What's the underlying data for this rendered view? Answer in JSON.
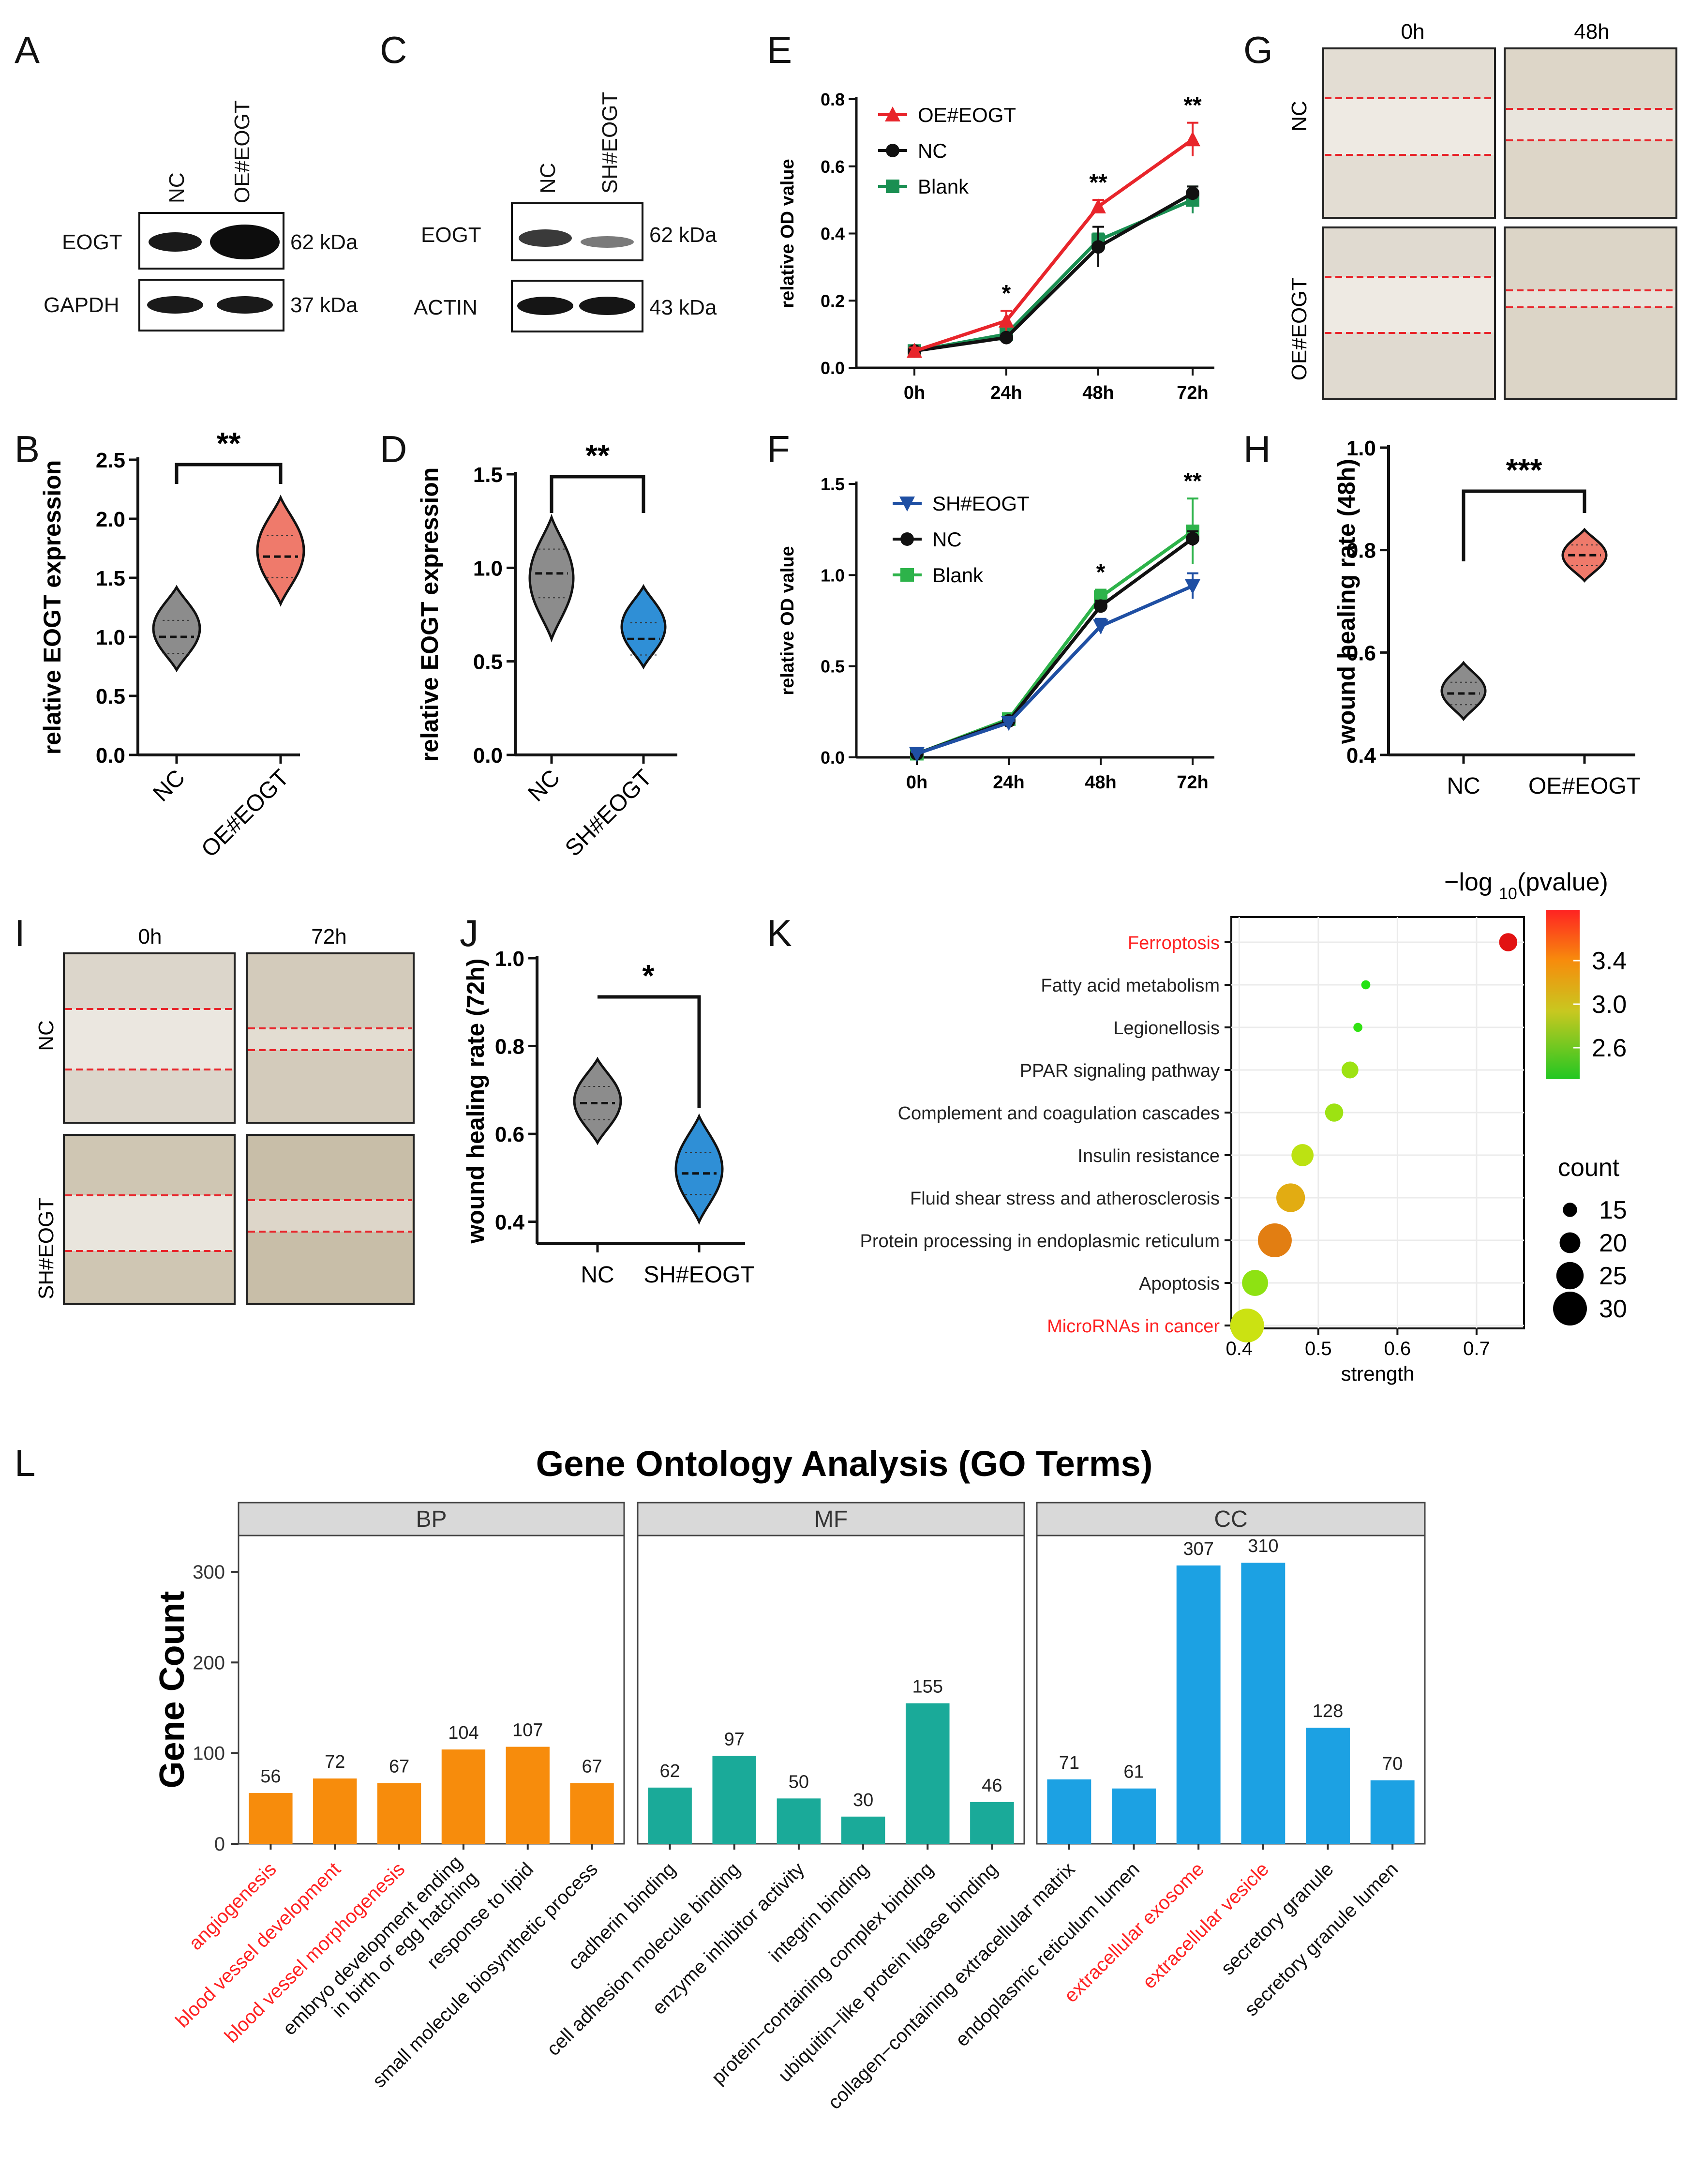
{
  "colors": {
    "red": "#e8252b",
    "black": "#111111",
    "green": "#1a8f52",
    "green2": "#2db34a",
    "blue": "#1f4fa3",
    "gray": "#8c8c8c",
    "salmon": "#ef7a6b",
    "lightblue": "#2f8fd6",
    "orange": "#f78c0c",
    "teal": "#1aaa99",
    "sky": "#1ca1e3",
    "highlight": "#ff2222",
    "strip": "#d9d9d9"
  },
  "panel_labels": {
    "A": "A",
    "B": "B",
    "C": "C",
    "D": "D",
    "E": "E",
    "F": "F",
    "G": "G",
    "H": "H",
    "I": "I",
    "J": "J",
    "K": "K",
    "L": "L"
  },
  "blotA": {
    "lanes": [
      "NC",
      "OE#EOGT"
    ],
    "rows": [
      {
        "label": "EOGT",
        "kda": "62 kDa"
      },
      {
        "label": "GAPDH",
        "kda": "37 kDa"
      }
    ]
  },
  "blotC": {
    "lanes": [
      "NC",
      "SH#EOGT"
    ],
    "rows": [
      {
        "label": "EOGT",
        "kda": "62 kDa"
      },
      {
        "label": "ACTIN",
        "kda": "43 kDa"
      }
    ]
  },
  "scratchG": {
    "cols": [
      "0h",
      "48h"
    ],
    "rows": [
      "NC",
      "OE#EOGT"
    ]
  },
  "scratchI": {
    "cols": [
      "0h",
      "72h"
    ],
    "rows": [
      "NC",
      "SH#EOGT"
    ]
  },
  "chart_data": [
    {
      "id": "B",
      "type": "violin",
      "ylabel": "relative EOGT expression",
      "ylim": [
        0,
        2.5
      ],
      "yticks": [
        "0.0",
        "0.5",
        "1.0",
        "1.5",
        "2.0",
        "2.5"
      ],
      "categories": [
        "NC",
        "OE#EOGT"
      ],
      "medians": [
        1.0,
        1.68
      ],
      "ranges": [
        [
          0.72,
          1.42
        ],
        [
          1.28,
          2.18
        ]
      ],
      "significance": "**"
    },
    {
      "id": "D",
      "type": "violin",
      "ylabel": "relative EOGT expression",
      "ylim": [
        0,
        1.5
      ],
      "yticks": [
        "0.0",
        "0.5",
        "1.0",
        "1.5"
      ],
      "categories": [
        "NC",
        "SH#EOGT"
      ],
      "medians": [
        0.97,
        0.62
      ],
      "ranges": [
        [
          0.62,
          1.27
        ],
        [
          0.47,
          0.9
        ]
      ],
      "significance": "**"
    },
    {
      "id": "E",
      "type": "line",
      "ylabel": "relative OD value",
      "x": [
        "0h",
        "24h",
        "48h",
        "72h"
      ],
      "ylim": [
        0,
        0.8
      ],
      "yticks": [
        "0.0",
        "0.2",
        "0.4",
        "0.6",
        "0.8"
      ],
      "series": [
        {
          "name": "OE#EOGT",
          "values": [
            0.05,
            0.14,
            0.48,
            0.68
          ],
          "err": [
            0.01,
            0.03,
            0.02,
            0.05
          ],
          "marker": "triangle"
        },
        {
          "name": "NC",
          "values": [
            0.05,
            0.09,
            0.36,
            0.52
          ],
          "err": [
            0.01,
            0.01,
            0.06,
            0.02
          ],
          "marker": "circle"
        },
        {
          "name": "Blank",
          "values": [
            0.05,
            0.1,
            0.38,
            0.5
          ],
          "err": [
            0.01,
            0.01,
            0.02,
            0.04
          ],
          "marker": "square"
        }
      ],
      "annotations": [
        "",
        "*",
        "**",
        "**"
      ]
    },
    {
      "id": "F",
      "type": "line",
      "ylabel": "relative OD value",
      "x": [
        "0h",
        "24h",
        "48h",
        "72h"
      ],
      "ylim": [
        0,
        1.5
      ],
      "yticks": [
        "0.0",
        "0.5",
        "1.0",
        "1.5"
      ],
      "series": [
        {
          "name": "SH#EOGT",
          "values": [
            0.02,
            0.19,
            0.72,
            0.94
          ],
          "err": [
            0.01,
            0.01,
            0.04,
            0.07
          ],
          "marker": "triangle-down"
        },
        {
          "name": "NC",
          "values": [
            0.02,
            0.2,
            0.83,
            1.2
          ],
          "err": [
            0.01,
            0.01,
            0.03,
            0.04
          ],
          "marker": "circle"
        },
        {
          "name": "Blank",
          "values": [
            0.02,
            0.21,
            0.88,
            1.24
          ],
          "err": [
            0.01,
            0.01,
            0.04,
            0.18
          ],
          "marker": "square"
        }
      ],
      "annotations": [
        "",
        "",
        "*",
        "**"
      ]
    },
    {
      "id": "H",
      "type": "violin",
      "ylabel": "wound healing rate (48h)",
      "ylim": [
        0.4,
        1.0
      ],
      "yticks": [
        "0.4",
        "0.6",
        "0.8",
        "1.0"
      ],
      "categories": [
        "NC",
        "OE#EOGT"
      ],
      "medians": [
        0.52,
        0.79
      ],
      "ranges": [
        [
          0.47,
          0.58
        ],
        [
          0.74,
          0.84
        ]
      ],
      "significance": "***"
    },
    {
      "id": "J",
      "type": "violin",
      "ylabel": "wound healing rate (72h)",
      "ylim": [
        0.35,
        1.0
      ],
      "yticks": [
        "0.4",
        "0.6",
        "0.8",
        "1.0"
      ],
      "categories": [
        "NC",
        "SH#EOGT"
      ],
      "medians": [
        0.67,
        0.51
      ],
      "ranges": [
        [
          0.58,
          0.77
        ],
        [
          0.4,
          0.64
        ]
      ],
      "significance": "*"
    },
    {
      "id": "K",
      "type": "scatter",
      "xlabel": "strength",
      "xlim": [
        0.39,
        0.76
      ],
      "xticks": [
        "0.4",
        "0.5",
        "0.6",
        "0.7"
      ],
      "legend_color_title": "−log",
      "legend_color_sub": "10",
      "legend_color_suffix": "(pvalue)",
      "color_ticks": [
        "3.4",
        "3.0",
        "2.6"
      ],
      "size_title": "count",
      "size_ticks": [
        "15",
        "20",
        "25",
        "30"
      ],
      "highlight_terms": [
        "Ferroptosis",
        "MicroRNAs in cancer"
      ],
      "terms": [
        {
          "label": "Ferroptosis",
          "strength": 0.74,
          "count": 18,
          "p": 3.7
        },
        {
          "label": "Fatty acid metabolism",
          "strength": 0.56,
          "count": 11,
          "p": 2.4
        },
        {
          "label": "Legionellosis",
          "strength": 0.55,
          "count": 11,
          "p": 2.45
        },
        {
          "label": "PPAR signaling pathway",
          "strength": 0.54,
          "count": 17,
          "p": 2.8
        },
        {
          "label": "Complement and coagulation cascades",
          "strength": 0.52,
          "count": 18,
          "p": 2.8
        },
        {
          "label": "Insulin resistance",
          "strength": 0.48,
          "count": 21,
          "p": 2.9
        },
        {
          "label": "Fluid shear stress and atherosclerosis",
          "strength": 0.465,
          "count": 26,
          "p": 3.2
        },
        {
          "label": "Protein processing in endoplasmic reticulum",
          "strength": 0.445,
          "count": 30,
          "p": 3.35
        },
        {
          "label": "Apoptosis",
          "strength": 0.42,
          "count": 24,
          "p": 2.75
        },
        {
          "label": "MicroRNAs in cancer",
          "strength": 0.41,
          "count": 30,
          "p": 2.95
        }
      ]
    },
    {
      "id": "L",
      "type": "bar",
      "title": "Gene Ontology Analysis (GO Terms)",
      "ylabel": "Gene Count",
      "ylim": [
        0,
        340
      ],
      "yticks": [
        "0",
        "100",
        "200",
        "300"
      ],
      "facets": [
        {
          "name": "BP",
          "color": "#f78c0c",
          "terms": [
            "angiogenesis",
            "blood vessel development",
            "blood vessel morphogenesis",
            "embryo development ending\nin birth or egg hatching",
            "response to lipid",
            "small molecule biosynthetic process"
          ],
          "values": [
            56,
            72,
            67,
            104,
            107,
            67
          ],
          "highlight": [
            true,
            true,
            true,
            false,
            false,
            false
          ]
        },
        {
          "name": "MF",
          "color": "#1aaa99",
          "terms": [
            "cadherin binding",
            "cell adhesion molecule binding",
            "enzyme inhibitor activity",
            "integrin binding",
            "protein−containing complex binding",
            "ubiquitin−like protein ligase binding"
          ],
          "values": [
            62,
            97,
            50,
            30,
            155,
            46
          ],
          "highlight": [
            false,
            false,
            false,
            false,
            false,
            false
          ]
        },
        {
          "name": "CC",
          "color": "#1ca1e3",
          "terms": [
            "collagen−containing extracellular matrix",
            "endoplasmic reticulum lumen",
            "extracellular exosome",
            "extracellular vesicle",
            "secretory granule",
            "secretory granule lumen"
          ],
          "values": [
            71,
            61,
            307,
            310,
            128,
            70
          ],
          "highlight": [
            false,
            false,
            true,
            true,
            false,
            false
          ]
        }
      ]
    }
  ]
}
